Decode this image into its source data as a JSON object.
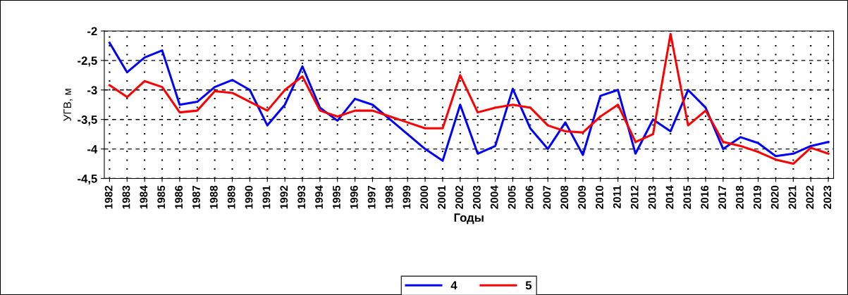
{
  "chart_data": {
    "type": "line",
    "xlabel": "Годы",
    "ylabel": "УГВ, м",
    "categories": [
      "1982",
      "1983",
      "1984",
      "1985",
      "1986",
      "1987",
      "1988",
      "1989",
      "1990",
      "1991",
      "1992",
      "1993",
      "1994",
      "1995",
      "1996",
      "1997",
      "1998",
      "1999",
      "2000",
      "2001",
      "2002",
      "2003",
      "2004",
      "2005",
      "2006",
      "2007",
      "2008",
      "2009",
      "2010",
      "2011",
      "2012",
      "2013",
      "2014",
      "2015",
      "2016",
      "2017",
      "2018",
      "2019",
      "2020",
      "2021",
      "2022",
      "2023"
    ],
    "series": [
      {
        "name": "4",
        "color": "#0000ff",
        "values": [
          -2.2,
          -2.7,
          -2.45,
          -2.33,
          -3.25,
          -3.2,
          -2.95,
          -2.83,
          -3.0,
          -3.6,
          -3.25,
          -2.6,
          -3.3,
          -3.52,
          -3.15,
          -3.25,
          -3.5,
          -3.75,
          -4.0,
          -4.2,
          -3.25,
          -4.08,
          -3.95,
          -2.98,
          -3.65,
          -4.0,
          -3.55,
          -4.1,
          -3.1,
          -3.0,
          -4.08,
          -3.5,
          -3.7,
          -3.0,
          -3.3,
          -4.0,
          -3.8,
          -3.9,
          -4.12,
          -4.08,
          -3.95,
          -3.88
        ]
      },
      {
        "name": "5",
        "color": "#ff0000",
        "values": [
          -2.92,
          -3.12,
          -2.85,
          -2.95,
          -3.38,
          -3.35,
          -3.02,
          -3.05,
          -3.2,
          -3.35,
          -3.0,
          -2.77,
          -3.35,
          -3.45,
          -3.35,
          -3.35,
          -3.45,
          -3.55,
          -3.65,
          -3.65,
          -2.75,
          -3.38,
          -3.3,
          -3.25,
          -3.3,
          -3.6,
          -3.7,
          -3.72,
          -3.45,
          -3.25,
          -3.88,
          -3.75,
          -2.05,
          -3.6,
          -3.35,
          -3.88,
          -3.95,
          -4.05,
          -4.18,
          -4.25,
          -3.98,
          -4.08
        ]
      }
    ],
    "ylim": [
      -4.5,
      -2
    ],
    "yticks": [
      {
        "value": -4.5,
        "label": "-4,5"
      },
      -4,
      {
        "value": -3.5,
        "label": "-3,5"
      },
      -3,
      {
        "value": -2.5,
        "label": "-2,5"
      },
      -2
    ],
    "grid": true,
    "legend": "bottom",
    "marker": "none",
    "line_style": "solid"
  }
}
